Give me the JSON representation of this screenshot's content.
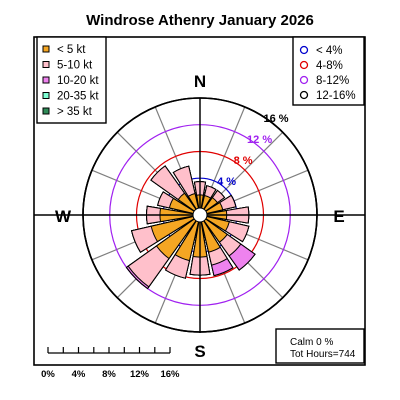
{
  "title": "Windrose  Athenry January 2026",
  "colors": {
    "axis": "#7f7f7f",
    "frame": "#000000",
    "ring_4": "#0000cd",
    "ring_8": "#e00000",
    "ring_12": "#a020f0",
    "ring_16": "#000000"
  },
  "chart_data": {
    "type": "windrose",
    "directions_deg": [
      0,
      22.5,
      45,
      67.5,
      90,
      112.5,
      135,
      157.5,
      180,
      202.5,
      225,
      247.5,
      270,
      292.5,
      315,
      337.5
    ],
    "compass_labels": {
      "n": "N",
      "e": "E",
      "s": "S",
      "w": "W"
    },
    "max_percent": 16,
    "speed_classes": [
      {
        "label": "< 5  kt",
        "color": "#f5a623",
        "values": [
          1.5,
          1.5,
          1.7,
          2.0,
          2.5,
          3.0,
          3.5,
          4.2,
          4.8,
          5.5,
          6.5,
          6.0,
          4.5,
          3.2,
          2.5,
          1.8
        ]
      },
      {
        "label": "5-10 kt",
        "color": "#ffc0cb",
        "values": [
          3.5,
          3.0,
          3.0,
          4.0,
          5.8,
          6.0,
          6.0,
          6.2,
          7.5,
          8.2,
          11.7,
          9.0,
          6.5,
          5.0,
          7.5,
          6.0
        ]
      },
      {
        "label": "10-20 kt",
        "color": "#ee82ee",
        "values": [
          3.5,
          3.0,
          3.0,
          4.0,
          5.8,
          6.0,
          8.6,
          7.8,
          7.5,
          8.2,
          12.0,
          9.0,
          6.5,
          5.0,
          7.5,
          6.0
        ]
      },
      {
        "label": "20-35 kt",
        "color": "#7fffd4",
        "values": [
          3.5,
          3.0,
          3.0,
          4.0,
          5.8,
          6.0,
          8.6,
          7.8,
          7.5,
          8.2,
          12.0,
          9.0,
          6.5,
          5.0,
          7.5,
          6.0
        ]
      },
      {
        "label": "> 35 kt",
        "color": "#2e8b57",
        "values": [
          3.5,
          3.0,
          3.0,
          4.0,
          5.8,
          6.0,
          8.6,
          7.8,
          7.5,
          8.2,
          12.0,
          9.0,
          6.5,
          5.0,
          7.5,
          6.0
        ]
      }
    ],
    "rings": [
      {
        "value": 4,
        "label": "4 %",
        "legend": "< 4%",
        "color": "#0000cd"
      },
      {
        "value": 8,
        "label": "8 %",
        "legend": "4-8%",
        "color": "#e00000"
      },
      {
        "value": 12,
        "label": "12 %",
        "legend": "8-12%",
        "color": "#a020f0"
      },
      {
        "value": 16,
        "label": "16 %",
        "legend": "12-16%",
        "color": "#000000"
      }
    ],
    "scale_ticks": [
      "0%",
      "4%",
      "8%",
      "12%",
      "16%"
    ],
    "calm_text": "Calm 0 %",
    "hours_text": "Tot Hours=744"
  }
}
